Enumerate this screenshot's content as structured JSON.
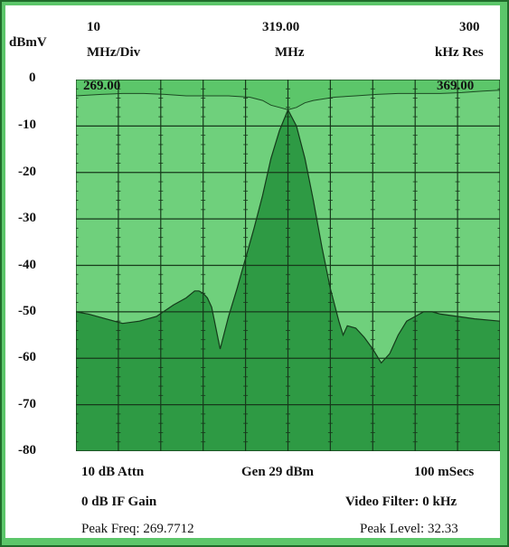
{
  "header": {
    "unit_label": "dBmV",
    "span_value": "10",
    "span_unit": "MHz/Div",
    "center_value": "319.00",
    "center_unit": "MHz",
    "res_value": "300",
    "res_unit": "kHz Res"
  },
  "marker_left": "269.00",
  "marker_right": "369.00",
  "footer": {
    "attn": "10 dB Attn",
    "gen": "Gen 29 dBm",
    "sweep": "100 mSecs",
    "if_gain": "0 dB IF Gain",
    "video_filter": "Video Filter: 0 kHz",
    "peak_freq": "Peak Freq: 269.7712",
    "peak_level": "Peak Level: 32.33"
  },
  "colors": {
    "background": "#5cc66a",
    "trace_fill": "#2e9a44",
    "overlay_fill": "#6fd07c",
    "grid": "#17391b",
    "frame": "#1f6b2a"
  },
  "chart_data": {
    "type": "area",
    "title": "",
    "xlabel": "",
    "ylabel": "dBmV",
    "xlim": [
      269.0,
      369.0
    ],
    "ylim": [
      -80,
      0
    ],
    "yticks": [
      "0",
      "-10",
      "-20",
      "-30",
      "-40",
      "-50",
      "-60",
      "-70",
      "-80"
    ],
    "grid": true,
    "series": [
      {
        "x": [
          269,
          272,
          276,
          280,
          284,
          288,
          292,
          295,
          297,
          298,
          299,
          300,
          301,
          303,
          305,
          307,
          309,
          311,
          313,
          315,
          317,
          319,
          321,
          323,
          325,
          327,
          329,
          331,
          332,
          333,
          335,
          337,
          339,
          341,
          343,
          345,
          347,
          349,
          351,
          353,
          355,
          359,
          363,
          369
        ],
        "y": [
          -50,
          -50.5,
          -51.5,
          -52.5,
          -52,
          -51,
          -48.5,
          -47,
          -45.5,
          -45.5,
          -46,
          -47,
          -49,
          -58,
          -51,
          -45,
          -38.5,
          -32,
          -25,
          -17,
          -11,
          -6.5,
          -10,
          -17,
          -26,
          -36,
          -45,
          -52,
          -55,
          -53,
          -53.5,
          -55.5,
          -58,
          -61,
          -59,
          -55,
          -52,
          -51,
          -50,
          -50,
          -50.5,
          -51,
          -51.5,
          -52
        ]
      },
      {
        "x": [
          269,
          275,
          280,
          285,
          290,
          295,
          300,
          305,
          310,
          313,
          315,
          317,
          319,
          321,
          323,
          325,
          330,
          335,
          340,
          345,
          350,
          355,
          360,
          365,
          369
        ],
        "y": [
          -3.5,
          -3.2,
          -3,
          -3,
          -3.2,
          -3.5,
          -3.5,
          -3.5,
          -3.8,
          -4.5,
          -5.5,
          -6,
          -6.5,
          -6,
          -5,
          -4.5,
          -3.8,
          -3.5,
          -3.2,
          -3,
          -3,
          -3,
          -2.8,
          -2.5,
          -2.3
        ]
      }
    ]
  }
}
